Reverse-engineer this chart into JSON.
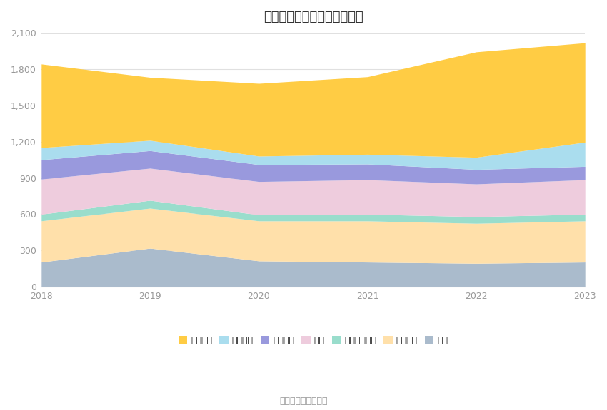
{
  "title": "历年主要资产堆积图（亿元）",
  "years": [
    2018,
    2019,
    2020,
    2021,
    2022,
    2023
  ],
  "series": {
    "货币资金": [
      690,
      520,
      600,
      640,
      870,
      820
    ],
    "应收账款": [
      100,
      85,
      70,
      80,
      100,
      200
    ],
    "预付款项": [
      160,
      145,
      140,
      130,
      120,
      110
    ],
    "存货": [
      290,
      265,
      275,
      285,
      270,
      285
    ],
    "长期股权投资": [
      55,
      65,
      50,
      55,
      55,
      55
    ],
    "固定资产": [
      340,
      330,
      330,
      340,
      330,
      340
    ],
    "其它": [
      205,
      320,
      215,
      205,
      195,
      205
    ]
  },
  "colors": {
    "货币资金": "#FFCC44",
    "应收账款": "#AADDEE",
    "预付款项": "#9999DD",
    "存货": "#EECCDD",
    "长期股权投资": "#99DDCC",
    "固定资产": "#FFE0AA",
    "其它": "#AABBCC"
  },
  "source": "数据来源：恒生聚源",
  "ylim": [
    0,
    2100
  ],
  "yticks": [
    0,
    300,
    600,
    900,
    1200,
    1500,
    1800,
    2100
  ],
  "legend_labels": [
    "货币资金",
    "应收账款",
    "预付款项",
    "存货",
    "长期股权投资",
    "固定资产",
    "其它"
  ]
}
